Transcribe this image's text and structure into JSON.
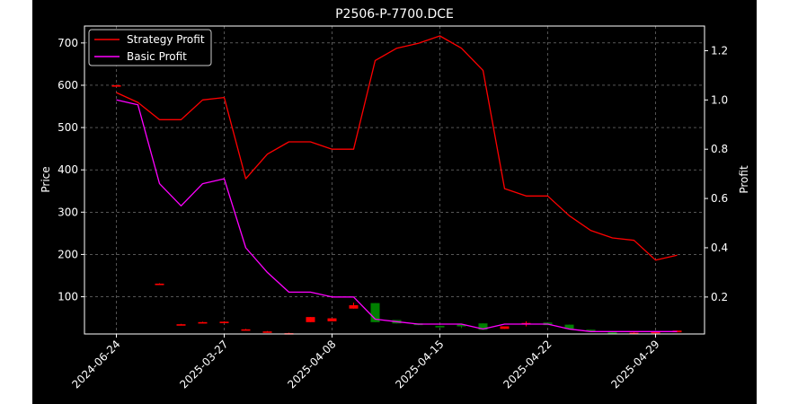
{
  "chart_data": {
    "type": "candlestick",
    "title": "P2506-P-7700.DCE",
    "xlabel": "",
    "ylabel_left": "Price",
    "ylabel_right": "Profit",
    "ylim_left": [
      12,
      740
    ],
    "ylim_right": [
      0.05,
      1.3
    ],
    "left_ticks": [
      100,
      200,
      300,
      400,
      500,
      600,
      700
    ],
    "right_ticks": [
      0.2,
      0.4,
      0.6,
      0.8,
      1.0,
      1.2
    ],
    "right_tick_labels": [
      "0.2",
      "0.4",
      "0.6",
      "0.8",
      "1.0",
      "1.2"
    ],
    "x_ticks": [
      {
        "index": 0,
        "label": "2024-06-24"
      },
      {
        "index": 5,
        "label": "2025-03-27"
      },
      {
        "index": 10,
        "label": "2025-04-08"
      },
      {
        "index": 15,
        "label": "2025-04-15"
      },
      {
        "index": 20,
        "label": "2025-04-22"
      },
      {
        "index": 25,
        "label": "2025-04-29"
      }
    ],
    "n_points": 27,
    "grid": true,
    "legend_position": "upper-left",
    "series": [
      {
        "name": "Strategy Profit",
        "color": "#ff0000",
        "axis": "right",
        "values": [
          1.03,
          0.99,
          0.92,
          0.92,
          1.0,
          1.01,
          0.68,
          0.78,
          0.83,
          0.83,
          0.8,
          0.8,
          1.16,
          1.21,
          1.23,
          1.26,
          1.21,
          1.12,
          0.64,
          0.61,
          0.61,
          0.53,
          0.47,
          0.44,
          0.43,
          0.35,
          0.37
        ]
      },
      {
        "name": "Basic Profit",
        "color": "#ff00ff",
        "axis": "right",
        "values": [
          1.0,
          0.98,
          0.66,
          0.57,
          0.66,
          0.68,
          0.4,
          0.3,
          0.22,
          0.22,
          0.2,
          0.2,
          0.11,
          0.1,
          0.09,
          0.09,
          0.09,
          0.07,
          0.09,
          0.09,
          0.09,
          0.07,
          0.06,
          0.06,
          0.06,
          0.06,
          0.06
        ]
      }
    ],
    "candles": [
      {
        "i": 0,
        "open": 600,
        "close": 600,
        "high": 601,
        "low": 599
      },
      {
        "i": 2,
        "open": 131,
        "close": 131,
        "high": 132,
        "low": 130
      },
      {
        "i": 3,
        "open": 35,
        "close": 35,
        "high": 36,
        "low": 34
      },
      {
        "i": 4,
        "open": 40,
        "close": 40,
        "high": 41,
        "low": 39
      },
      {
        "i": 5,
        "open": 41,
        "close": 41,
        "high": 42,
        "low": 40
      },
      {
        "i": 6,
        "open": 23,
        "close": 23,
        "high": 24,
        "low": 22
      },
      {
        "i": 7,
        "open": 18,
        "close": 18,
        "high": 19,
        "low": 17
      },
      {
        "i": 8,
        "open": 14,
        "close": 14,
        "high": 15,
        "low": 13
      },
      {
        "i": 9,
        "open": 40,
        "close": 52,
        "high": 52,
        "low": 40
      },
      {
        "i": 10,
        "open": 42,
        "close": 49,
        "high": 49,
        "low": 42
      },
      {
        "i": 11,
        "open": 72,
        "close": 80,
        "high": 86,
        "low": 72
      },
      {
        "i": 12,
        "open": 85,
        "close": 40,
        "high": 85,
        "low": 40
      },
      {
        "i": 13,
        "open": 45,
        "close": 37,
        "high": 45,
        "low": 37
      },
      {
        "i": 14,
        "open": 37,
        "close": 33,
        "high": 37,
        "low": 33
      },
      {
        "i": 15,
        "open": 31,
        "close": 30,
        "high": 32,
        "low": 29
      },
      {
        "i": 16,
        "open": 34,
        "close": 30,
        "high": 36,
        "low": 26
      },
      {
        "i": 17,
        "open": 37,
        "close": 22,
        "high": 37,
        "low": 22
      },
      {
        "i": 18,
        "open": 24,
        "close": 30,
        "high": 30,
        "low": 24
      },
      {
        "i": 19,
        "open": 36,
        "close": 38,
        "high": 42,
        "low": 30
      },
      {
        "i": 20,
        "open": 39,
        "close": 33,
        "high": 39,
        "low": 33
      },
      {
        "i": 21,
        "open": 34,
        "close": 24,
        "high": 34,
        "low": 24
      },
      {
        "i": 22,
        "open": 22,
        "close": 19,
        "high": 22,
        "low": 19
      },
      {
        "i": 23,
        "open": 16,
        "close": 13,
        "high": 16,
        "low": 13
      },
      {
        "i": 24,
        "open": 15,
        "close": 15,
        "high": 16,
        "low": 14
      },
      {
        "i": 25,
        "open": 17,
        "close": 17,
        "high": 18,
        "low": 16
      },
      {
        "i": 26,
        "open": 16,
        "close": 20,
        "high": 20,
        "low": 16
      }
    ],
    "candle_up_color": "#ff0000",
    "candle_down_color": "#008000"
  }
}
